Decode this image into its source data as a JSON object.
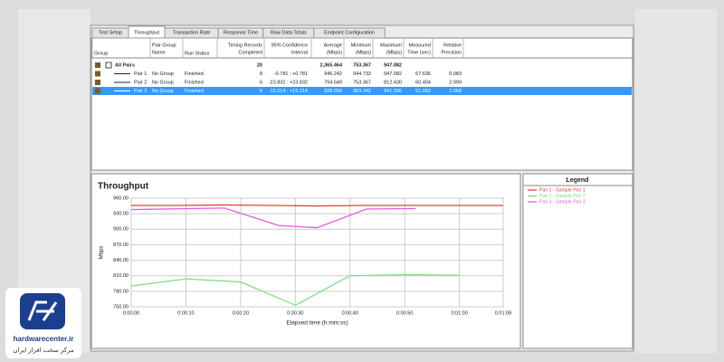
{
  "tabs": [
    "Test Setup",
    "Throughput",
    "Transaction Rate",
    "Response Time",
    "Raw Data Totals",
    "Endpoint Configuration"
  ],
  "active_tab": 1,
  "table": {
    "headers": [
      [
        "Group"
      ],
      [
        "Pair Group",
        "Name"
      ],
      [
        "Run Status"
      ],
      [
        "Timing Records",
        "Completed"
      ],
      [
        "95% Confidence",
        "Interval"
      ],
      [
        "Average",
        "(Mbps)"
      ],
      [
        "Minimum",
        "(Mbps)"
      ],
      [
        "Maximum",
        "(Mbps)"
      ],
      [
        "Measured",
        "Time (sec)"
      ],
      [
        "Relative",
        "Precision"
      ]
    ],
    "rows": [
      [
        "All Pairs",
        null,
        null,
        "20",
        null,
        "2,365.464",
        "753.367",
        "947.082",
        null,
        null
      ],
      [
        "Pair 1",
        "No Group",
        "Finished",
        "8",
        "-0.781 : +0.781",
        "946.242",
        "944.733",
        "947.082",
        "67.636",
        "0.083"
      ],
      [
        "Pair 2",
        "No Group",
        "Finished",
        "6",
        "-23.832 : +23.832",
        "794.649",
        "753.367",
        "812.430",
        "60.404",
        "2.999"
      ],
      [
        "Pair 3",
        "No Group",
        "Finished",
        "6",
        "-19.214 : +19.214",
        "928.990",
        "903.342",
        "941.066",
        "51.660",
        "2.068"
      ]
    ],
    "selected_row": 3
  },
  "chart_data": {
    "type": "line",
    "title": "Throughput",
    "x_label": "Elapsed time (h:mm:ss)",
    "y_label": "Mbps",
    "xlim": [
      0,
      68
    ],
    "ylim": [
      750,
      960
    ],
    "xticks": [
      {
        "value": 0,
        "label": "0:00:00"
      },
      {
        "value": 10,
        "label": "0:00:10"
      },
      {
        "value": 20,
        "label": "0:00:20"
      },
      {
        "value": 30,
        "label": "0:00:30"
      },
      {
        "value": 40,
        "label": "0:00:40"
      },
      {
        "value": 50,
        "label": "0:00:50"
      },
      {
        "value": 60,
        "label": "0:01:00"
      },
      {
        "value": 68,
        "label": "0:01:08"
      }
    ],
    "yticks": [
      {
        "value": 750,
        "label": "750.00"
      },
      {
        "value": 780,
        "label": "780.00"
      },
      {
        "value": 810,
        "label": "810.00"
      },
      {
        "value": 840,
        "label": "840.00"
      },
      {
        "value": 870,
        "label": "870.00"
      },
      {
        "value": 900,
        "label": "900.00"
      },
      {
        "value": 930,
        "label": "930.00"
      },
      {
        "value": 960,
        "label": "960.00"
      }
    ],
    "grid": true,
    "legend_title": "Legend",
    "series": [
      {
        "name": "Pair 1 - Sample Pair 1",
        "color": "#e8403a",
        "x": [
          0,
          8.5,
          17,
          25.5,
          34,
          42.5,
          51,
          59.5,
          68
        ],
        "values": [
          946,
          946,
          947,
          946,
          945,
          946,
          946,
          946,
          946
        ]
      },
      {
        "name": "Pair 2 - Sample Pair 2",
        "color": "#7ee07e",
        "x": [
          0,
          10,
          20,
          30,
          40,
          50,
          60
        ],
        "values": [
          790,
          804,
          798,
          753,
          810,
          812,
          811
        ]
      },
      {
        "name": "Pair 3 - Sample Pair 3",
        "color": "#e060e0",
        "x": [
          0,
          17,
          27,
          34,
          43,
          52
        ],
        "values": [
          938,
          941,
          907,
          903,
          939,
          940
        ]
      }
    ]
  },
  "watermark": {
    "site": "hardwarecenter.ir",
    "tagline": "مرکز سخت افزار ایران"
  }
}
